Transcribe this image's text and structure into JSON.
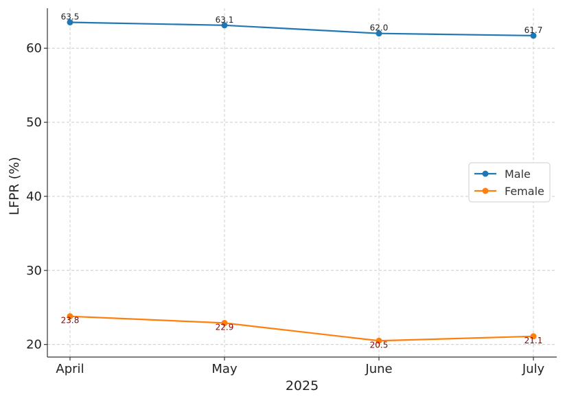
{
  "chart_data": {
    "type": "line",
    "categories": [
      "April",
      "May",
      "June",
      "July"
    ],
    "xlabel": "2025",
    "ylabel": "LFPR (%)",
    "ylim": [
      18.3,
      65.4
    ],
    "yticks": [
      20,
      30,
      40,
      50,
      60
    ],
    "grid": true,
    "legend_position": "center-right",
    "series": [
      {
        "name": "Male",
        "color": "#1f77b4",
        "label_color": "#222222",
        "values": [
          63.5,
          63.1,
          62.0,
          61.7
        ],
        "labels": [
          "63.5",
          "63.1",
          "62.0",
          "61.7"
        ],
        "label_side": "above"
      },
      {
        "name": "Female",
        "color": "#ff7f0e",
        "label_color": "#8b0000",
        "values": [
          23.8,
          22.9,
          20.5,
          21.1
        ],
        "labels": [
          "23.8",
          "22.9",
          "20.5",
          "21.1"
        ],
        "label_side": "below"
      }
    ]
  }
}
